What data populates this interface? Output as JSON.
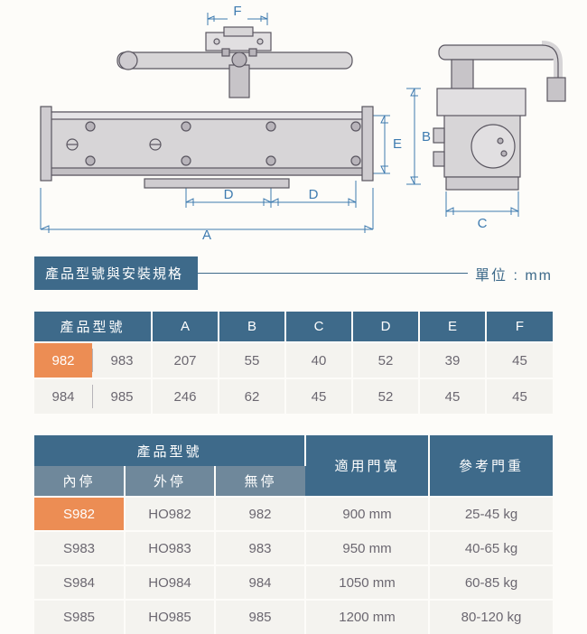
{
  "diagram": {
    "labels": {
      "A": "A",
      "B": "B",
      "C": "C",
      "D": "D",
      "E": "E",
      "F": "F"
    },
    "line_color": "#3e7bb0",
    "part_stroke": "#5a5660",
    "part_fill": "#e1dfe1",
    "body_fill": "#d7d5d7"
  },
  "section": {
    "title": "產品型號與安裝規格",
    "unit": "單位 : mm",
    "badge_bg": "#3e6a8a"
  },
  "table1": {
    "headers": [
      "產品型號",
      "A",
      "B",
      "C",
      "D",
      "E",
      "F"
    ],
    "rows": [
      {
        "models": [
          "982",
          "983"
        ],
        "highlight": 0,
        "vals": [
          "207",
          "55",
          "40",
          "52",
          "39",
          "45"
        ]
      },
      {
        "models": [
          "984",
          "985"
        ],
        "highlight": -1,
        "vals": [
          "246",
          "62",
          "45",
          "52",
          "45",
          "45"
        ]
      }
    ]
  },
  "table2": {
    "group_header": "產品型號",
    "sub_headers": [
      "內停",
      "外停",
      "無停"
    ],
    "right_headers": [
      "適用門寬",
      "參考門重"
    ],
    "rows": [
      {
        "cells": [
          "S982",
          "HO982",
          "982",
          "900 mm",
          "25-45 kg"
        ],
        "highlight": 0
      },
      {
        "cells": [
          "S983",
          "HO983",
          "983",
          "950 mm",
          "40-65 kg"
        ],
        "highlight": -1
      },
      {
        "cells": [
          "S984",
          "HO984",
          "984",
          "1050 mm",
          "60-85 kg"
        ],
        "highlight": -1
      },
      {
        "cells": [
          "S985",
          "HO985",
          "985",
          "1200 mm",
          "80-120 kg"
        ],
        "highlight": -1
      }
    ]
  },
  "colors": {
    "header_bg": "#3e6a8a",
    "subheader_bg": "#6f889b",
    "cell_bg": "#f4f3ef",
    "highlight_bg": "#ec8d54",
    "text": "#6b6770",
    "line": "#3e7bb0"
  }
}
